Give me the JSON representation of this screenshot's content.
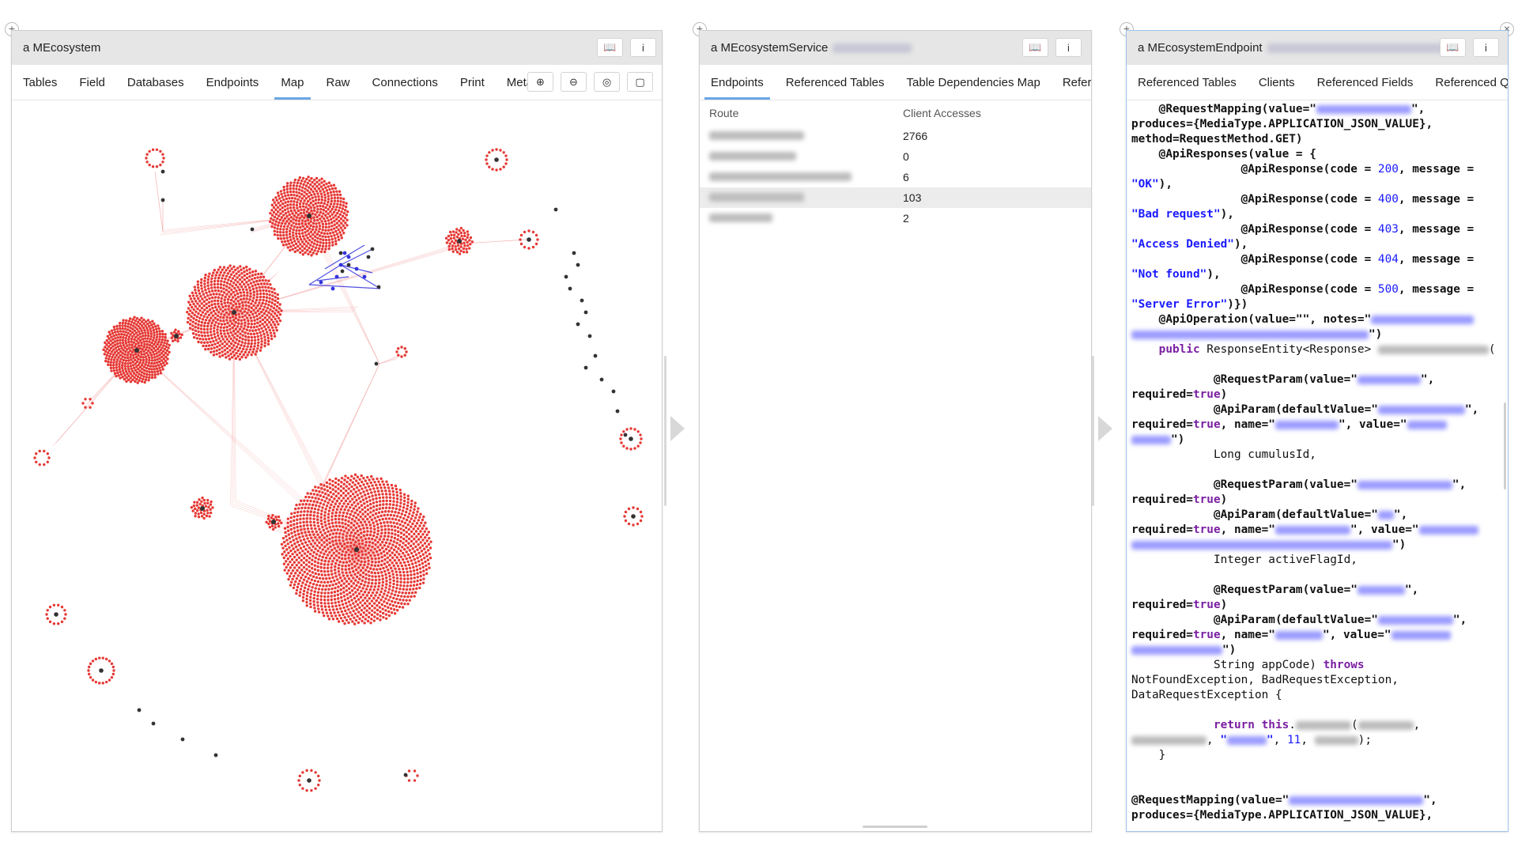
{
  "pane1": {
    "title": "a MEcosystem",
    "tabs": [
      "Tables",
      "Field",
      "Databases",
      "Endpoints",
      "Map",
      "Raw",
      "Connections",
      "Print",
      "Meta"
    ],
    "active_tab": "Map",
    "controls": [
      "⊕",
      "⊖",
      "◎",
      "▢"
    ]
  },
  "pane2": {
    "title": "a MEcosystemService",
    "tabs": [
      "Endpoints",
      "Referenced Tables",
      "Table Dependencies Map",
      "Referenc"
    ],
    "active_tab": "Endpoints",
    "table": {
      "headers": [
        "Route",
        "Client Accesses"
      ],
      "rows": [
        {
          "value": "2766"
        },
        {
          "value": "0"
        },
        {
          "value": "6"
        },
        {
          "value": "103"
        },
        {
          "value": "2"
        }
      ]
    }
  },
  "pane3": {
    "title": "a MEcosystemEndpoint",
    "tabs": [
      "Referenced Tables",
      "Clients",
      "Referenced Fields",
      "Referenced Quer"
    ]
  },
  "icons": {
    "book": "book-icon",
    "info": "info-icon",
    "plus": "plus-icon",
    "close": "close-icon"
  },
  "colors": {
    "node_red": "#e53935",
    "edge_red": "#f08a8a",
    "hub": "#333333",
    "edge_blue": "#3333dd",
    "accent": "#6aa7e6"
  }
}
